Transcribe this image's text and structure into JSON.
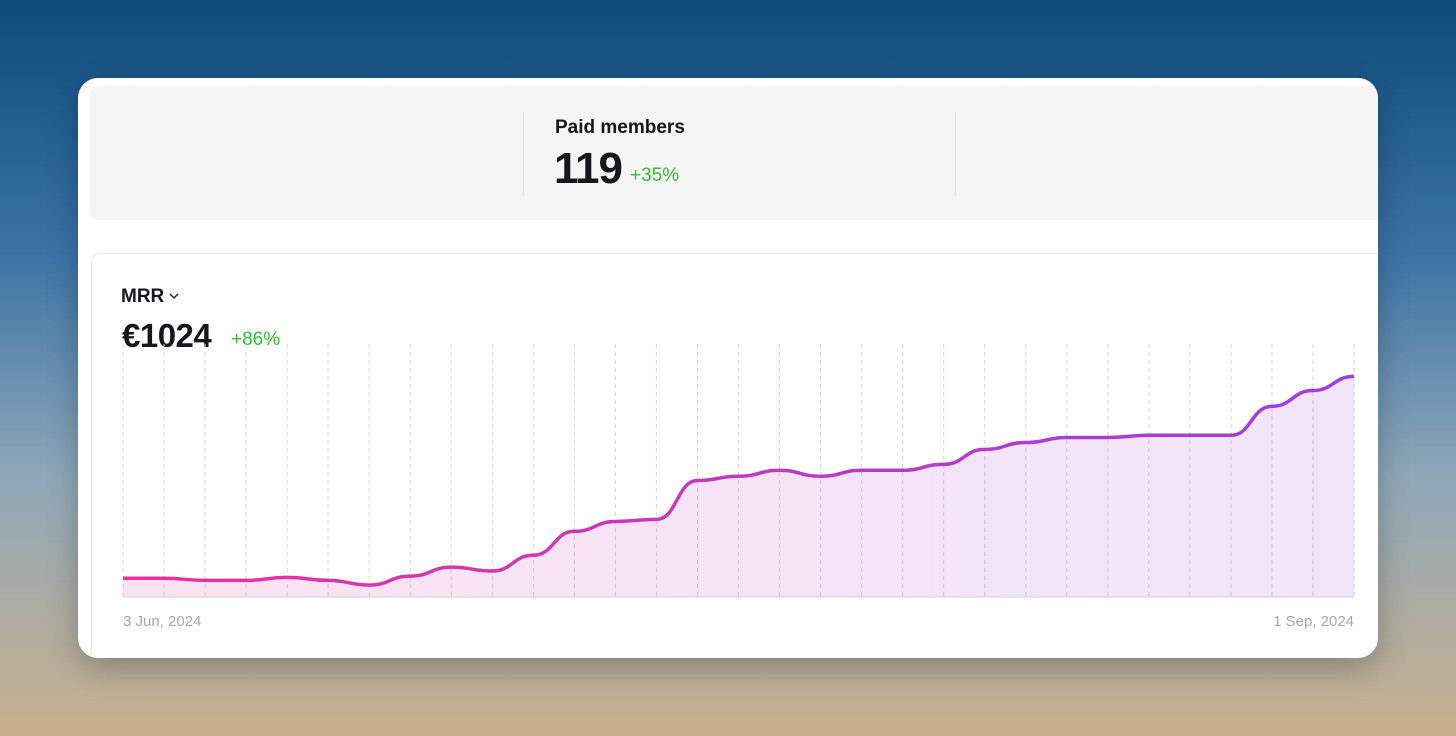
{
  "stats": {
    "label": "Paid members",
    "value": "119",
    "change": "+35%"
  },
  "chart_data": {
    "type": "line",
    "title": "MRR",
    "headline": "€1024",
    "change": "+86%",
    "categories": [
      "3 Jun, 2024",
      null,
      null,
      null,
      null,
      null,
      null,
      null,
      null,
      null,
      null,
      null,
      null,
      null,
      null,
      null,
      null,
      null,
      null,
      null,
      null,
      null,
      null,
      null,
      null,
      null,
      null,
      null,
      null,
      null,
      "1 Sep, 2024"
    ],
    "values": [
      551,
      551,
      546,
      546,
      553,
      546,
      535,
      556,
      577,
      568,
      605,
      661,
      684,
      689,
      780,
      790,
      804,
      790,
      804,
      804,
      818,
      853,
      869,
      881,
      881,
      886,
      886,
      886,
      954,
      991,
      1024
    ],
    "ylim": [
      500,
      1100
    ],
    "colors": [
      "#e8349c",
      "#9b3fe2"
    ],
    "grid": true
  }
}
